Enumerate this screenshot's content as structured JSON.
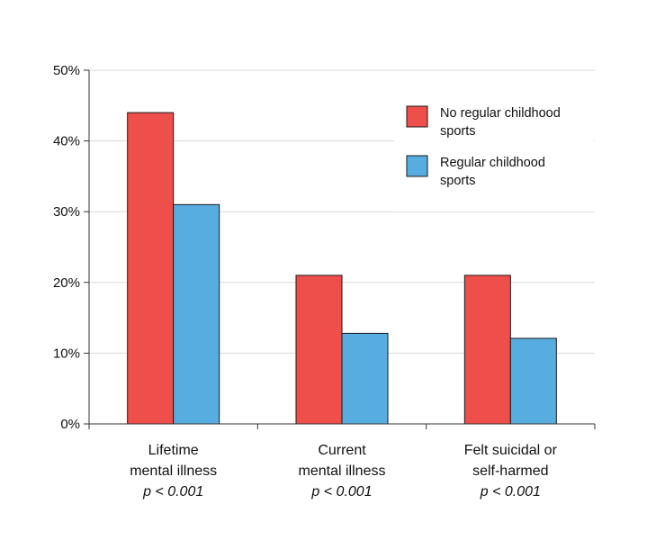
{
  "chart_data": {
    "type": "bar",
    "title": "",
    "xlabel": "",
    "ylabel": "",
    "ylim": [
      0,
      50
    ],
    "y_ticks": [
      "0%",
      "10%",
      "20%",
      "30%",
      "40%",
      "50%"
    ],
    "y_tick_values": [
      0,
      10,
      20,
      30,
      40,
      50
    ],
    "grid": true,
    "legend_position": "top-right",
    "categories": [
      {
        "lines": [
          "Lifetime",
          "mental illness"
        ],
        "pvalue": "p < 0.001"
      },
      {
        "lines": [
          "Current",
          "mental illness"
        ],
        "pvalue": "p < 0.001"
      },
      {
        "lines": [
          "Felt suicidal or",
          "self-harmed"
        ],
        "pvalue": "p < 0.001"
      }
    ],
    "series": [
      {
        "name": "No regular childhood sports",
        "legend_lines": [
          "No regular childhood",
          "sports"
        ],
        "color": "#ef4f4b",
        "values": [
          44,
          21,
          21
        ]
      },
      {
        "name": "Regular childhood sports",
        "legend_lines": [
          "Regular childhood",
          "sports"
        ],
        "color": "#58ade0",
        "values": [
          31,
          12.8,
          12.1
        ]
      }
    ]
  }
}
